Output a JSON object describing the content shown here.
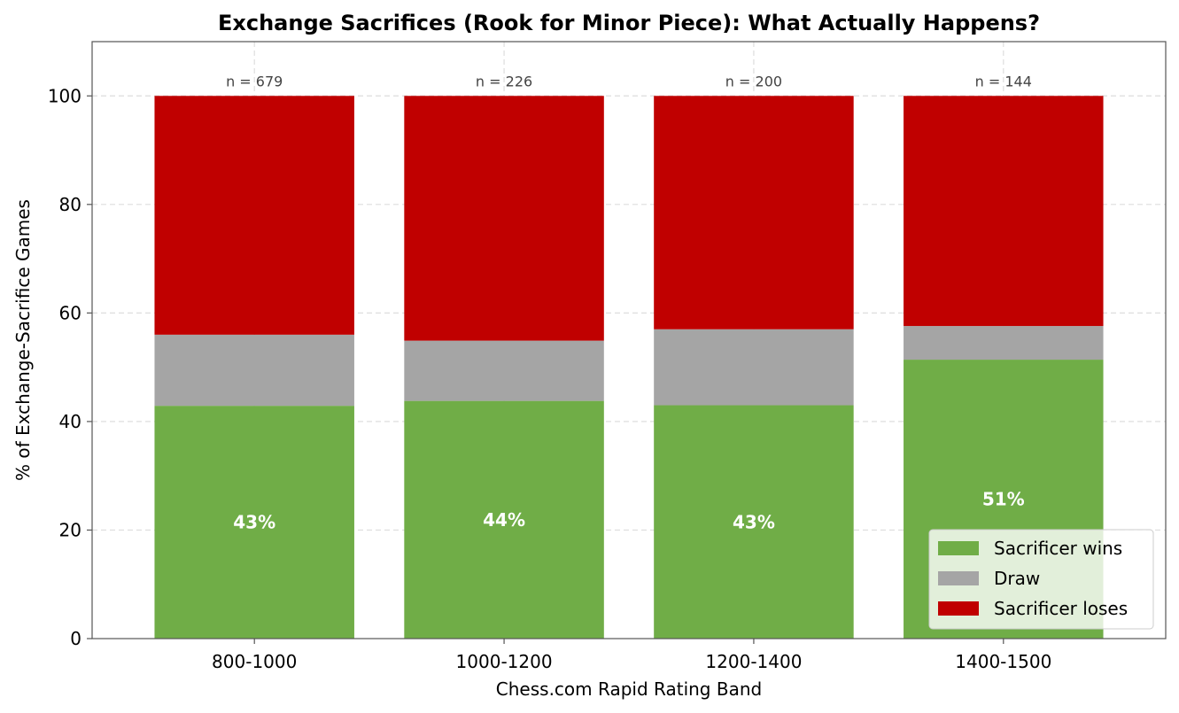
{
  "chart_data": {
    "type": "bar",
    "stacked": true,
    "title": "Exchange Sacrifices (Rook for Minor Piece): What Actually Happens?",
    "xlabel": "Chess.com Rapid Rating Band",
    "ylabel": "% of Exchange-Sacrifice Games",
    "categories": [
      "800-1000",
      "1000-1200",
      "1200-1400",
      "1400-1500"
    ],
    "sample_sizes": [
      "n = 679",
      "n = 226",
      "n = 200",
      "n = 144"
    ],
    "series": [
      {
        "name": "Sacrificer wins",
        "color": "#70ad47",
        "values": [
          42.9,
          43.8,
          43.0,
          51.4
        ]
      },
      {
        "name": "Draw",
        "color": "#a5a5a5",
        "values": [
          13.1,
          11.1,
          14.0,
          6.2
        ]
      },
      {
        "name": "Sacrificer loses",
        "color": "#c00000",
        "values": [
          44.0,
          45.1,
          43.0,
          42.4
        ]
      }
    ],
    "win_labels": [
      "43%",
      "44%",
      "43%",
      "51%"
    ],
    "ylim": [
      0,
      110
    ],
    "yticks": [
      0,
      20,
      40,
      60,
      80,
      100
    ],
    "grid": true,
    "legend_position": "lower-right"
  }
}
